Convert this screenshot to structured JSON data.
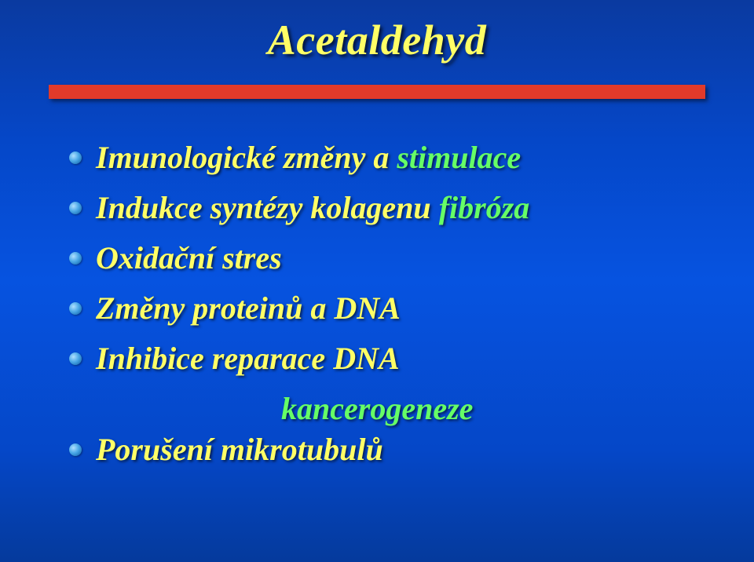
{
  "slide": {
    "title": "Acetaldehyd",
    "background_gradient": [
      "#0a3aa0",
      "#0547c8",
      "#0653e0",
      "#0547c8",
      "#053a9c"
    ],
    "underline_color": "#e13a2a",
    "title_color": "#ffff66",
    "bullet_gradient": [
      "#b0e0ff",
      "#4aa8e8",
      "#0a5aa0"
    ],
    "body_fontsize": 40,
    "title_fontsize": 54,
    "items": [
      {
        "prefix": "Imunologické změny a ",
        "prefix_color": "#ffff66",
        "suffix": "stimulace",
        "suffix_color": "#66ff66"
      },
      {
        "prefix": "Indukce syntézy kolagenu ",
        "prefix_color": "#ffff66",
        "suffix": "fibróza",
        "suffix_color": "#66ff66"
      },
      {
        "prefix": "Oxidační stres",
        "prefix_color": "#ffff66",
        "suffix": "",
        "suffix_color": "#66ff66"
      },
      {
        "prefix": "Změny proteinů a DNA",
        "prefix_color": "#ffff66",
        "suffix": "",
        "suffix_color": "#66ff66"
      },
      {
        "prefix": "Inhibice reparace DNA",
        "prefix_color": "#ffff66",
        "suffix": "",
        "suffix_color": "#66ff66"
      }
    ],
    "indent_line": "kancerogeneze",
    "indent_color": "#66ff66",
    "last_item": {
      "prefix": "Porušení mikrotubulů",
      "prefix_color": "#ffff66"
    }
  }
}
